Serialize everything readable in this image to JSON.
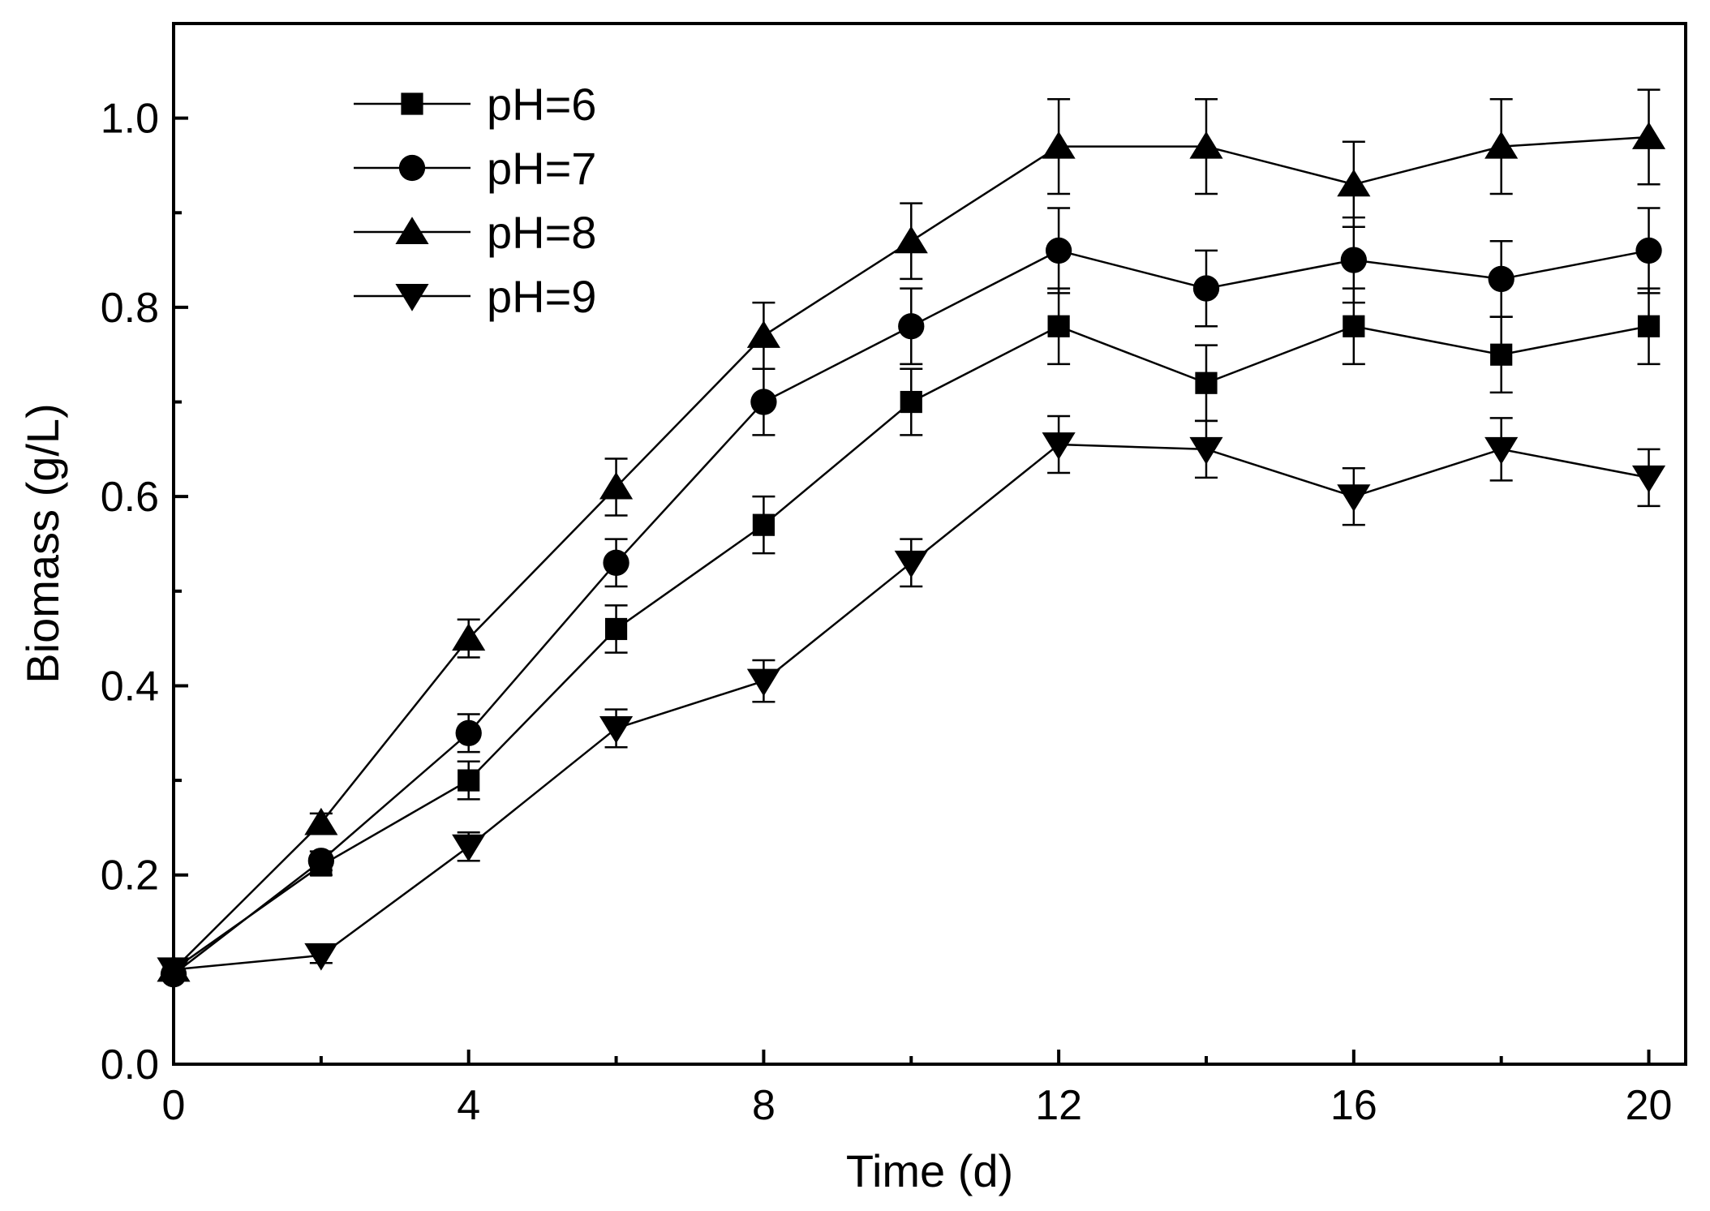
{
  "chart_data": {
    "type": "line",
    "title": "",
    "xlabel": "Time (d)",
    "ylabel": "Biomass (g/L)",
    "xlim": [
      0,
      20.5
    ],
    "ylim": [
      0,
      1.1
    ],
    "xticks": [
      0,
      4,
      8,
      12,
      16,
      20
    ],
    "yticks": [
      0.0,
      0.2,
      0.4,
      0.6,
      0.8,
      1.0
    ],
    "xtick_labels": [
      "0",
      "4",
      "8",
      "12",
      "16",
      "20"
    ],
    "ytick_labels": [
      "0.0",
      "0.2",
      "0.4",
      "0.6",
      "0.8",
      "1.0"
    ],
    "legend_position": "top-left",
    "x": [
      0,
      2,
      4,
      6,
      8,
      10,
      12,
      14,
      16,
      18,
      20
    ],
    "series": [
      {
        "name": "pH=6",
        "marker": "square",
        "values": [
          0.1,
          0.21,
          0.3,
          0.46,
          0.57,
          0.7,
          0.78,
          0.72,
          0.78,
          0.75,
          0.78
        ],
        "errors": [
          0.005,
          0.01,
          0.02,
          0.025,
          0.03,
          0.035,
          0.04,
          0.04,
          0.04,
          0.04,
          0.04
        ]
      },
      {
        "name": "pH=7",
        "marker": "circle",
        "values": [
          0.095,
          0.215,
          0.35,
          0.53,
          0.7,
          0.78,
          0.86,
          0.82,
          0.85,
          0.83,
          0.86
        ],
        "errors": [
          0.005,
          0.01,
          0.02,
          0.025,
          0.035,
          0.04,
          0.045,
          0.04,
          0.045,
          0.04,
          0.045
        ]
      },
      {
        "name": "pH=8",
        "marker": "triangle-up",
        "values": [
          0.1,
          0.255,
          0.45,
          0.61,
          0.77,
          0.87,
          0.97,
          0.97,
          0.93,
          0.97,
          0.98
        ],
        "errors": [
          0.005,
          0.01,
          0.02,
          0.03,
          0.035,
          0.04,
          0.05,
          0.05,
          0.045,
          0.05,
          0.05
        ]
      },
      {
        "name": "pH=9",
        "marker": "triangle-down",
        "values": [
          0.1,
          0.115,
          0.23,
          0.355,
          0.405,
          0.53,
          0.655,
          0.65,
          0.6,
          0.65,
          0.62
        ],
        "errors": [
          0.005,
          0.008,
          0.015,
          0.02,
          0.022,
          0.025,
          0.03,
          0.03,
          0.03,
          0.033,
          0.03
        ]
      }
    ]
  }
}
